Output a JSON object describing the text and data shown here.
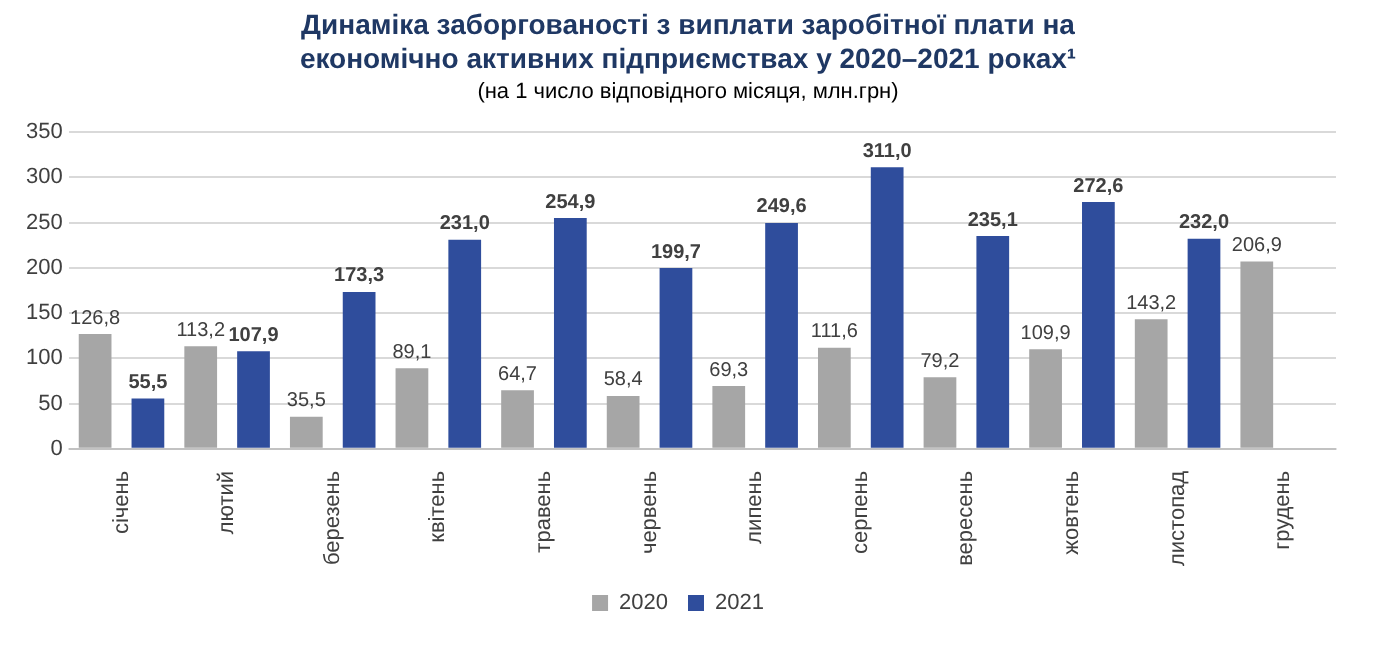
{
  "chart_data": {
    "type": "bar",
    "title": "Динаміка заборгованості з виплати заробітної плати на економічно активних підприємствах у 2020–2021 роках¹",
    "subtitle": "(на 1 число відповідного місяця, млн.грн)",
    "categories": [
      "січень",
      "лютий",
      "березень",
      "квітень",
      "травень",
      "червень",
      "липень",
      "серпень",
      "вересень",
      "жовтень",
      "листопад",
      "грудень"
    ],
    "series": [
      {
        "name": "2020",
        "color": "#a6a6a6",
        "values": [
          126.8,
          113.2,
          35.5,
          89.1,
          64.7,
          58.4,
          69.3,
          111.6,
          79.2,
          109.9,
          143.2,
          206.9
        ],
        "value_labels": [
          "126,8",
          "113,2",
          "35,5",
          "89,1",
          "64,7",
          "58,4",
          "69,3",
          "111,6",
          "79,2",
          "109,9",
          "143,2",
          "206,9"
        ]
      },
      {
        "name": "2021",
        "color": "#2f4d9c",
        "values": [
          55.5,
          107.9,
          173.3,
          231.0,
          254.9,
          199.7,
          249.6,
          311.0,
          235.1,
          272.6,
          232.0,
          null
        ],
        "value_labels": [
          "55,5",
          "107,9",
          "173,3",
          "231,0",
          "254,9",
          "199,7",
          "249,6",
          "311,0",
          "235,1",
          "272,6",
          "232,0",
          null
        ]
      }
    ],
    "ylim": [
      0,
      350
    ],
    "yticks": [
      0,
      50,
      100,
      150,
      200,
      250,
      300,
      350
    ],
    "grid": "y",
    "legend": "bottom"
  }
}
